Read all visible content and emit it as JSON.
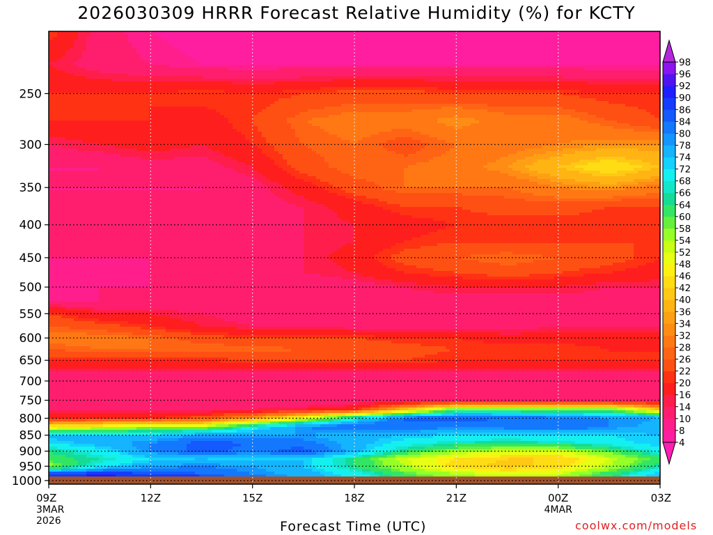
{
  "title": "2026030309 HRRR Forecast Relative Humidity (%) for KCTY",
  "credit": "coolwx.com/models",
  "chart_data": {
    "type": "heatmap",
    "title": "2026030309 HRRR Forecast Relative Humidity (%) for KCTY",
    "xlabel": "Forecast Time (UTC)",
    "ylabel": "",
    "x_ticks": [
      {
        "label": "09Z",
        "sub": [
          "3MAR",
          "2026"
        ],
        "hour": 9
      },
      {
        "label": "12Z",
        "sub": [],
        "hour": 12
      },
      {
        "label": "15Z",
        "sub": [],
        "hour": 15
      },
      {
        "label": "18Z",
        "sub": [],
        "hour": 18
      },
      {
        "label": "21Z",
        "sub": [],
        "hour": 21
      },
      {
        "label": "00Z",
        "sub": [
          "4MAR"
        ],
        "hour": 24
      },
      {
        "label": "03Z",
        "sub": [],
        "hour": 27
      }
    ],
    "xlim": [
      9,
      27
    ],
    "y_ticks": [
      250,
      300,
      350,
      400,
      450,
      500,
      550,
      600,
      650,
      700,
      750,
      800,
      850,
      900,
      950,
      1000
    ],
    "ylim": [
      200,
      1013
    ],
    "y_scale": "log",
    "grid": true,
    "colorbar": {
      "levels": [
        4,
        8,
        10,
        14,
        16,
        20,
        22,
        26,
        28,
        32,
        34,
        36,
        40,
        42,
        46,
        48,
        52,
        54,
        58,
        60,
        64,
        66,
        68,
        72,
        74,
        78,
        80,
        84,
        86,
        90,
        92,
        96,
        98
      ],
      "colors": [
        "#ff1eb4",
        "#ff1ea0",
        "#ff1e8c",
        "#ff1e6e",
        "#ff1e4b",
        "#ff1e1e",
        "#ff3214",
        "#ff5014",
        "#ff6414",
        "#ff7814",
        "#ff8c14",
        "#ffa014",
        "#ffb414",
        "#ffc814",
        "#ffdc14",
        "#fff014",
        "#e6ff14",
        "#c8ff14",
        "#96ff28",
        "#64f03c",
        "#32e664",
        "#14dc96",
        "#14e6c8",
        "#14f0f0",
        "#14d2ff",
        "#14b4ff",
        "#1496ff",
        "#1478ff",
        "#145aff",
        "#143cff",
        "#1e1eff",
        "#5014f0",
        "#8c14f0",
        "#b428dc"
      ],
      "extend": "both"
    },
    "ground_color": "#a0522d",
    "times": [
      9,
      10.5,
      12,
      13.5,
      15,
      16.5,
      18,
      19.5,
      21,
      22.5,
      24,
      25.5,
      27
    ],
    "levels": [
      200,
      225,
      250,
      275,
      300,
      325,
      350,
      375,
      400,
      425,
      450,
      475,
      500,
      525,
      550,
      575,
      600,
      625,
      650,
      675,
      700,
      725,
      750,
      775,
      800,
      825,
      850,
      875,
      900,
      925,
      950,
      975,
      1000
    ],
    "rh": [
      [
        22,
        12,
        8,
        6,
        6,
        6,
        6,
        6,
        6,
        6,
        6,
        6,
        6
      ],
      [
        16,
        12,
        10,
        8,
        8,
        8,
        8,
        8,
        8,
        8,
        8,
        8,
        8
      ],
      [
        20,
        20,
        20,
        22,
        20,
        22,
        24,
        24,
        22,
        22,
        22,
        20,
        20
      ],
      [
        20,
        20,
        20,
        18,
        22,
        28,
        30,
        30,
        34,
        30,
        30,
        26,
        22
      ],
      [
        14,
        16,
        18,
        16,
        20,
        26,
        28,
        24,
        28,
        30,
        32,
        34,
        34
      ],
      [
        10,
        10,
        12,
        12,
        16,
        24,
        28,
        28,
        30,
        34,
        40,
        46,
        40
      ],
      [
        10,
        10,
        10,
        10,
        12,
        18,
        24,
        28,
        28,
        28,
        32,
        34,
        30
      ],
      [
        10,
        10,
        10,
        10,
        12,
        14,
        18,
        22,
        22,
        24,
        24,
        22,
        22
      ],
      [
        12,
        10,
        12,
        12,
        12,
        14,
        16,
        18,
        20,
        20,
        20,
        20,
        20
      ],
      [
        10,
        10,
        10,
        10,
        12,
        14,
        16,
        20,
        22,
        22,
        22,
        22,
        22
      ],
      [
        10,
        10,
        10,
        10,
        12,
        14,
        18,
        24,
        26,
        28,
        26,
        24,
        20
      ],
      [
        8,
        8,
        10,
        10,
        12,
        14,
        16,
        20,
        22,
        24,
        22,
        20,
        18
      ],
      [
        8,
        10,
        10,
        10,
        10,
        10,
        12,
        14,
        16,
        16,
        16,
        14,
        14
      ],
      [
        10,
        10,
        10,
        10,
        10,
        10,
        10,
        12,
        12,
        12,
        12,
        12,
        12
      ],
      [
        22,
        16,
        16,
        14,
        12,
        12,
        12,
        12,
        12,
        12,
        12,
        12,
        12
      ],
      [
        26,
        24,
        20,
        16,
        14,
        14,
        12,
        12,
        12,
        12,
        14,
        14,
        14
      ],
      [
        30,
        30,
        28,
        24,
        22,
        22,
        22,
        20,
        20,
        18,
        18,
        18,
        18
      ],
      [
        26,
        28,
        28,
        28,
        28,
        26,
        26,
        24,
        22,
        22,
        22,
        20,
        20
      ],
      [
        20,
        20,
        20,
        20,
        22,
        22,
        22,
        22,
        20,
        20,
        20,
        20,
        20
      ],
      [
        14,
        14,
        14,
        14,
        14,
        14,
        14,
        14,
        14,
        14,
        14,
        14,
        14
      ],
      [
        10,
        10,
        10,
        10,
        10,
        10,
        10,
        10,
        10,
        10,
        10,
        10,
        10
      ],
      [
        10,
        10,
        10,
        10,
        10,
        10,
        10,
        10,
        10,
        10,
        10,
        10,
        10
      ],
      [
        10,
        10,
        10,
        10,
        10,
        10,
        10,
        10,
        10,
        10,
        10,
        10,
        10
      ],
      [
        12,
        12,
        12,
        12,
        14,
        16,
        20,
        40,
        60,
        60,
        60,
        60,
        40
      ],
      [
        20,
        20,
        20,
        24,
        34,
        50,
        70,
        84,
        86,
        84,
        82,
        80,
        78
      ],
      [
        46,
        50,
        56,
        54,
        70,
        80,
        84,
        84,
        80,
        82,
        84,
        80,
        76
      ],
      [
        76,
        74,
        74,
        78,
        78,
        78,
        76,
        74,
        72,
        72,
        72,
        72,
        74
      ],
      [
        72,
        76,
        80,
        86,
        84,
        82,
        76,
        70,
        66,
        64,
        66,
        70,
        74
      ],
      [
        64,
        70,
        80,
        86,
        82,
        86,
        76,
        64,
        56,
        52,
        52,
        60,
        70
      ],
      [
        62,
        66,
        72,
        74,
        72,
        74,
        64,
        52,
        46,
        42,
        42,
        52,
        62
      ],
      [
        56,
        70,
        78,
        80,
        78,
        74,
        64,
        54,
        44,
        40,
        44,
        54,
        66
      ],
      [
        86,
        88,
        86,
        84,
        80,
        76,
        70,
        60,
        54,
        50,
        52,
        62,
        74
      ],
      [
        94,
        96,
        94,
        90,
        84,
        78,
        72,
        64,
        58,
        56,
        58,
        66,
        76
      ]
    ]
  }
}
